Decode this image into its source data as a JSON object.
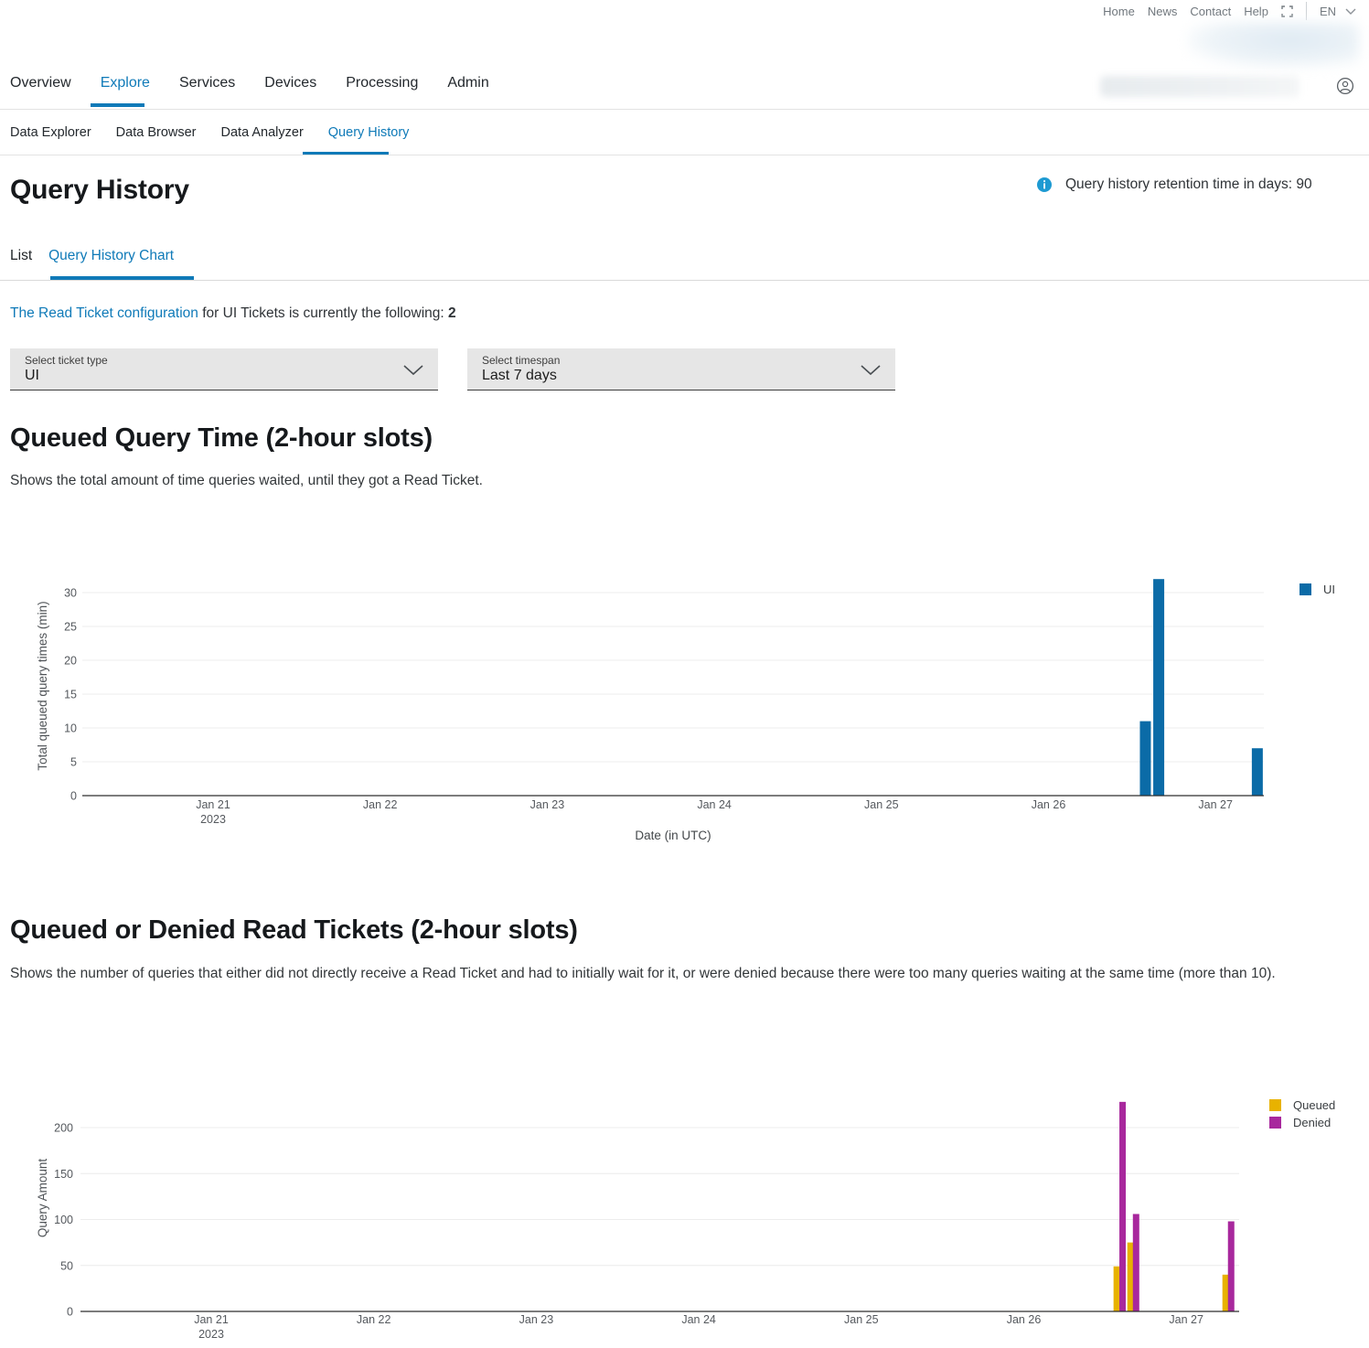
{
  "topbar": {
    "links": [
      "Home",
      "News",
      "Contact",
      "Help"
    ],
    "language": "EN"
  },
  "nav": {
    "items": [
      {
        "label": "Overview",
        "active": false
      },
      {
        "label": "Explore",
        "active": true
      },
      {
        "label": "Services",
        "active": false
      },
      {
        "label": "Devices",
        "active": false
      },
      {
        "label": "Processing",
        "active": false
      },
      {
        "label": "Admin",
        "active": false
      }
    ]
  },
  "subnav": {
    "items": [
      {
        "label": "Data Explorer",
        "active": false
      },
      {
        "label": "Data Browser",
        "active": false
      },
      {
        "label": "Data Analyzer",
        "active": false
      },
      {
        "label": "Query History",
        "active": true
      }
    ]
  },
  "page": {
    "title": "Query History",
    "retention_note": "Query history retention time in days: 90"
  },
  "tabs": [
    {
      "label": "List",
      "active": false
    },
    {
      "label": "Query History Chart",
      "active": true
    }
  ],
  "config_line": {
    "link": "The Read Ticket configuration",
    "middle": " for UI Tickets is currently the following: ",
    "value": "2"
  },
  "filters": [
    {
      "label": "Select ticket type",
      "value": "UI"
    },
    {
      "label": "Select timespan",
      "value": "Last 7 days"
    }
  ],
  "colors": {
    "accent_blue": "#0f7ab8",
    "chart_blue": "#0b6ba7",
    "queued_yellow": "#e8b200",
    "denied_magenta": "#a8289d",
    "info_blue": "#1e9ad2"
  },
  "chart_data": [
    {
      "type": "bar",
      "title": "Queued Query Time (2-hour slots)",
      "description": "Shows the total amount of time queries waited, until they got a Read Ticket.",
      "xlabel": "Date (in UTC)",
      "ylabel": "Total queued query times (min)",
      "ylim": [
        0,
        32
      ],
      "yticks": [
        0,
        5,
        10,
        15,
        20,
        25,
        30
      ],
      "x_tick_labels": [
        "Jan 21",
        "Jan 22",
        "Jan 23",
        "Jan 24",
        "Jan 25",
        "Jan 26",
        "Jan 27"
      ],
      "x_year_label": "2023",
      "grid": true,
      "legend_position": "top-right",
      "series": [
        {
          "name": "UI",
          "color": "#0b6ba7",
          "points": [
            {
              "slot": "Jan 26 ~14:00 (2h slot)",
              "x_day": 5.58,
              "value": 11
            },
            {
              "slot": "Jan 26 ~16:00 (2h slot)",
              "x_day": 5.66,
              "value": 32
            },
            {
              "slot": "Jan 27 ~06:00 (2h slot)",
              "x_day": 6.25,
              "value": 7
            }
          ]
        }
      ]
    },
    {
      "type": "bar",
      "title": "Queued or Denied Read Tickets (2-hour slots)",
      "description": "Shows the number of queries that either did not directly receive a Read Ticket and had to initially wait for it, or were denied because there were too many queries waiting at the same time (more than 10).",
      "xlabel": "",
      "ylabel": "Query Amount",
      "ylim": [
        0,
        230
      ],
      "yticks": [
        0,
        50,
        100,
        150,
        200
      ],
      "x_tick_labels": [
        "Jan 21",
        "Jan 22",
        "Jan 23",
        "Jan 24",
        "Jan 25",
        "Jan 26",
        "Jan 27"
      ],
      "x_year_label": "2023",
      "grid": true,
      "legend_position": "top-right",
      "series": [
        {
          "name": "Queued",
          "color": "#e8b200",
          "points": [
            {
              "slot": "Jan 26 ~14:00 (2h slot)",
              "x_day": 5.572,
              "value": 49
            },
            {
              "slot": "Jan 26 ~16:00 (2h slot)",
              "x_day": 5.657,
              "value": 75
            },
            {
              "slot": "Jan 27 ~06:00 (2h slot)",
              "x_day": 6.242,
              "value": 40
            }
          ]
        },
        {
          "name": "Denied",
          "color": "#a8289d",
          "points": [
            {
              "slot": "Jan 26 ~14:00 (2h slot)",
              "x_day": 5.608,
              "value": 228
            },
            {
              "slot": "Jan 26 ~16:00 (2h slot)",
              "x_day": 5.691,
              "value": 106
            },
            {
              "slot": "Jan 27 ~06:00 (2h slot)",
              "x_day": 6.276,
              "value": 98
            }
          ]
        }
      ]
    }
  ]
}
